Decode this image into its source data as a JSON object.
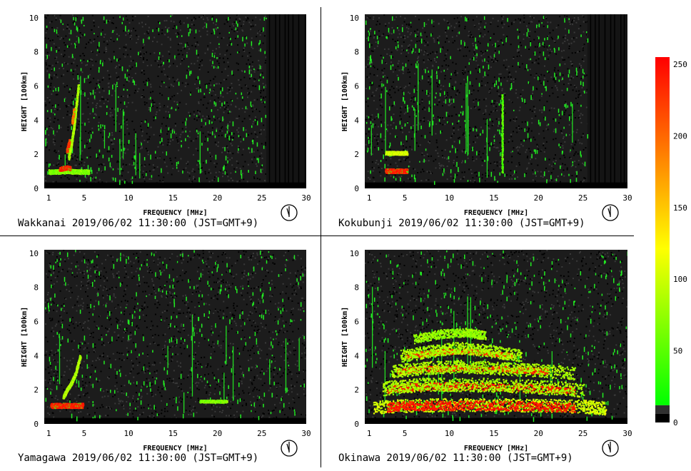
{
  "chart_data": [
    {
      "type": "heatmap",
      "station": "Wakkanai",
      "caption": "Wakkanai 2019/06/02 11:30:00 (JST=GMT+9)",
      "xlabel": "FREQUENCY [MHz]",
      "ylabel": "HEIGHT [100km]",
      "xlim": [
        0.5,
        30
      ],
      "ylim": [
        0,
        10.2
      ],
      "xticks": [
        1,
        5,
        10,
        15,
        20,
        25,
        30
      ],
      "yticks": [
        0,
        2,
        4,
        6,
        8,
        10
      ],
      "blank_from_mhz": 25.5,
      "traces": [
        {
          "f": [
            1.0,
            2.0,
            3.0,
            4.0,
            5.5
          ],
          "h": [
            1.0,
            1.0,
            1.05,
            1.0,
            1.0
          ],
          "width_h": 0.25,
          "intensity": 90
        },
        {
          "f": [
            2.2,
            2.6,
            3.0,
            3.4
          ],
          "h": [
            1.15,
            1.2,
            1.25,
            1.2
          ],
          "width_h": 0.22,
          "intensity": 240
        },
        {
          "f": [
            3.2,
            3.5,
            3.8,
            4.0,
            4.3
          ],
          "h": [
            1.8,
            2.6,
            3.6,
            4.6,
            6.0
          ],
          "width_h": 0.2,
          "intensity": 100
        },
        {
          "f": [
            3.6,
            3.8
          ],
          "h": [
            3.9,
            4.6
          ],
          "width_h": 0.25,
          "intensity": 200
        },
        {
          "f": [
            3.0,
            3.3
          ],
          "h": [
            2.2,
            2.8
          ],
          "width_h": 0.25,
          "intensity": 230
        }
      ]
    },
    {
      "type": "heatmap",
      "station": "Kokubunji",
      "caption": "Kokubunji 2019/06/02 11:30:00 (JST=GMT+9)",
      "xlabel": "FREQUENCY [MHz]",
      "ylabel": "HEIGHT [100km]",
      "xlim": [
        0.5,
        30
      ],
      "ylim": [
        0,
        10.2
      ],
      "xticks": [
        1,
        5,
        10,
        15,
        20,
        25,
        30
      ],
      "yticks": [
        0,
        2,
        4,
        6,
        8,
        10
      ],
      "blank_from_mhz": 25.5,
      "traces": [
        {
          "f": [
            2.8,
            3.5,
            4.5,
            5.2
          ],
          "h": [
            1.05,
            1.05,
            1.05,
            1.05
          ],
          "width_h": 0.25,
          "intensity": 240
        },
        {
          "f": [
            2.8,
            3.5,
            4.5,
            5.2
          ],
          "h": [
            2.1,
            2.1,
            2.1,
            2.1
          ],
          "width_h": 0.2,
          "intensity": 110
        },
        {
          "f": [
            15.9,
            15.9
          ],
          "h": [
            1.0,
            5.5
          ],
          "width_h": 0.08,
          "intensity": 80
        }
      ]
    },
    {
      "type": "heatmap",
      "station": "Yamagawa",
      "caption": "Yamagawa 2019/06/02 11:30:00 (JST=GMT+9)",
      "xlabel": "FREQUENCY [MHz]",
      "ylabel": "HEIGHT [100km]",
      "xlim": [
        0.5,
        30
      ],
      "ylim": [
        0,
        10.2
      ],
      "xticks": [
        1,
        5,
        10,
        15,
        20,
        25,
        30
      ],
      "yticks": [
        0,
        2,
        4,
        6,
        8,
        10
      ],
      "blank_from_mhz": 30,
      "traces": [
        {
          "f": [
            1.2,
            2.0,
            3.0,
            4.0,
            4.8
          ],
          "h": [
            1.1,
            1.1,
            1.1,
            1.1,
            1.1
          ],
          "width_h": 0.28,
          "intensity": 240
        },
        {
          "f": [
            2.6,
            3.0,
            3.5,
            4.0,
            4.5
          ],
          "h": [
            1.6,
            2.0,
            2.4,
            3.0,
            4.0
          ],
          "width_h": 0.2,
          "intensity": 100
        },
        {
          "f": [
            18.0,
            19.5,
            21.0
          ],
          "h": [
            1.35,
            1.35,
            1.35
          ],
          "width_h": 0.15,
          "intensity": 90
        }
      ]
    },
    {
      "type": "heatmap",
      "station": "Okinawa",
      "caption": "Okinawa 2019/06/02 11:30:00 (JST=GMT+9)",
      "xlabel": "FREQUENCY [MHz]",
      "ylabel": "HEIGHT [100km]",
      "xlim": [
        0.5,
        30
      ],
      "ylim": [
        0,
        10.2
      ],
      "xticks": [
        1,
        5,
        10,
        15,
        20,
        25,
        30
      ],
      "yticks": [
        0,
        2,
        4,
        6,
        8,
        10
      ],
      "blank_from_mhz": 30,
      "traces": [
        {
          "f": [
            1.5,
            5.0,
            10.0,
            15.0,
            20.0,
            25.0,
            27.5
          ],
          "h": [
            1.0,
            1.1,
            1.15,
            1.15,
            1.1,
            1.05,
            0.95
          ],
          "width_h": 0.75,
          "intensity": 110
        },
        {
          "f": [
            3.0,
            6.0,
            10.0,
            15.0,
            20.0,
            24.0
          ],
          "h": [
            1.0,
            1.1,
            1.1,
            1.1,
            1.05,
            1.0
          ],
          "width_h": 0.55,
          "intensity": 245
        },
        {
          "f": [
            3.0,
            6.0,
            10.0,
            15.0,
            20.0,
            24.0
          ],
          "h": [
            2.05,
            2.2,
            2.25,
            2.2,
            2.1,
            2.0
          ],
          "width_h": 0.45,
          "intensity": 240
        },
        {
          "f": [
            2.5,
            6.0,
            10.0,
            15.0,
            20.0,
            25.0
          ],
          "h": [
            2.1,
            2.3,
            2.35,
            2.3,
            2.2,
            2.0
          ],
          "width_h": 0.8,
          "intensity": 100
        },
        {
          "f": [
            4.0,
            7.0,
            11.0,
            15.0,
            18.0,
            21.0
          ],
          "h": [
            3.1,
            3.25,
            3.3,
            3.25,
            3.2,
            3.1
          ],
          "width_h": 0.35,
          "intensity": 235
        },
        {
          "f": [
            3.5,
            7.0,
            11.0,
            15.0,
            19.0,
            24.0
          ],
          "h": [
            3.1,
            3.3,
            3.4,
            3.3,
            3.2,
            3.0
          ],
          "width_h": 0.75,
          "intensity": 100
        },
        {
          "f": [
            5.0,
            8.0,
            11.0,
            14.0,
            17.0
          ],
          "h": [
            4.0,
            4.2,
            4.3,
            4.2,
            4.0
          ],
          "width_h": 0.3,
          "intensity": 225
        },
        {
          "f": [
            4.5,
            8.0,
            11.0,
            14.5,
            18.0
          ],
          "h": [
            4.0,
            4.3,
            4.5,
            4.3,
            4.0
          ],
          "width_h": 0.7,
          "intensity": 100
        },
        {
          "f": [
            6.0,
            9.0,
            12.0,
            14.0
          ],
          "h": [
            5.0,
            5.3,
            5.4,
            5.2
          ],
          "width_h": 0.5,
          "intensity": 95
        }
      ]
    }
  ],
  "colorbar": {
    "min": 0,
    "max": 255,
    "ticks": [
      "0",
      "50",
      "100",
      "150",
      "200",
      "250"
    ],
    "tick_values": [
      0,
      50,
      100,
      150,
      200,
      250
    ],
    "colors": [
      "#000000",
      "#303030",
      "#00ff00",
      "#ffff00",
      "#ff8000",
      "#ff0000"
    ]
  }
}
